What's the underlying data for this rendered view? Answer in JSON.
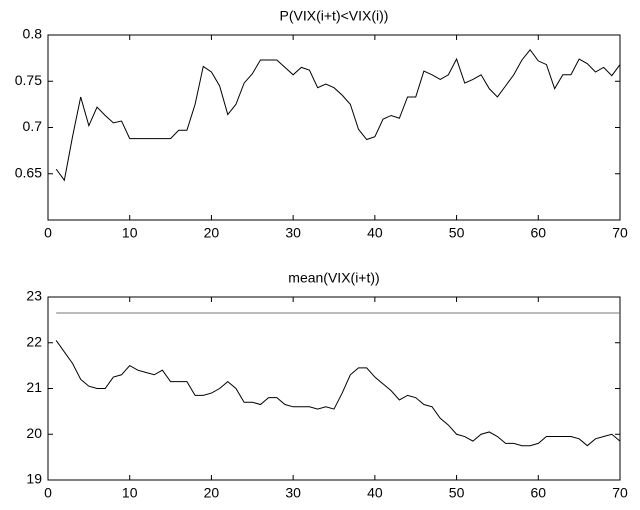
{
  "chart_data": [
    {
      "type": "line",
      "title": "P(VIX(i+t)<VIX(i))",
      "xlim": [
        0,
        70
      ],
      "xticks": [
        0,
        10,
        20,
        30,
        40,
        50,
        60,
        70
      ],
      "ylim": [
        0.6,
        0.8
      ],
      "yticks": [
        0.65,
        0.7,
        0.75,
        0.8
      ],
      "series": [
        {
          "color": "#000000",
          "x": [
            1,
            2,
            3,
            4,
            5,
            6,
            7,
            8,
            9,
            10,
            11,
            12,
            13,
            14,
            15,
            16,
            17,
            18,
            19,
            20,
            21,
            22,
            23,
            24,
            25,
            26,
            27,
            28,
            29,
            30,
            31,
            32,
            33,
            34,
            35,
            36,
            37,
            38,
            39,
            40,
            41,
            42,
            43,
            44,
            45,
            46,
            47,
            48,
            49,
            50,
            51,
            52,
            53,
            54,
            55,
            56,
            57,
            58,
            59,
            60,
            61,
            62,
            63,
            64,
            65,
            66,
            67,
            68,
            69,
            70
          ],
          "values": [
            0.655,
            0.643,
            0.69,
            0.733,
            0.702,
            0.722,
            0.713,
            0.705,
            0.707,
            0.688,
            0.688,
            0.688,
            0.688,
            0.688,
            0.688,
            0.697,
            0.697,
            0.725,
            0.766,
            0.76,
            0.745,
            0.714,
            0.725,
            0.748,
            0.758,
            0.773,
            0.773,
            0.773,
            0.765,
            0.757,
            0.765,
            0.762,
            0.743,
            0.747,
            0.743,
            0.735,
            0.725,
            0.698,
            0.687,
            0.69,
            0.709,
            0.713,
            0.71,
            0.733,
            0.733,
            0.761,
            0.757,
            0.752,
            0.757,
            0.774,
            0.748,
            0.752,
            0.757,
            0.742,
            0.733,
            0.745,
            0.757,
            0.773,
            0.784,
            0.772,
            0.768,
            0.742,
            0.757,
            0.757,
            0.774,
            0.769,
            0.76,
            0.765,
            0.756,
            0.768
          ]
        }
      ]
    },
    {
      "type": "line",
      "title": "mean(VIX(i+t))",
      "xlim": [
        0,
        70
      ],
      "xticks": [
        0,
        10,
        20,
        30,
        40,
        50,
        60,
        70
      ],
      "ylim": [
        19,
        23
      ],
      "yticks": [
        19,
        20,
        21,
        22,
        23
      ],
      "series": [
        {
          "color": "#000000",
          "x": [
            1,
            2,
            3,
            4,
            5,
            6,
            7,
            8,
            9,
            10,
            11,
            12,
            13,
            14,
            15,
            16,
            17,
            18,
            19,
            20,
            21,
            22,
            23,
            24,
            25,
            26,
            27,
            28,
            29,
            30,
            31,
            32,
            33,
            34,
            35,
            36,
            37,
            38,
            39,
            40,
            41,
            42,
            43,
            44,
            45,
            46,
            47,
            48,
            49,
            50,
            51,
            52,
            53,
            54,
            55,
            56,
            57,
            58,
            59,
            60,
            61,
            62,
            63,
            64,
            65,
            66,
            67,
            68,
            69,
            70
          ],
          "values": [
            22.05,
            21.8,
            21.55,
            21.2,
            21.05,
            21.0,
            21.0,
            21.25,
            21.3,
            21.5,
            21.4,
            21.35,
            21.3,
            21.4,
            21.15,
            21.15,
            21.15,
            20.85,
            20.85,
            20.9,
            21.0,
            21.15,
            21.0,
            20.7,
            20.7,
            20.65,
            20.8,
            20.8,
            20.65,
            20.6,
            20.6,
            20.6,
            20.55,
            20.6,
            20.55,
            20.9,
            21.3,
            21.45,
            21.45,
            21.25,
            21.1,
            20.95,
            20.75,
            20.85,
            20.8,
            20.65,
            20.6,
            20.35,
            20.2,
            20.0,
            19.95,
            19.85,
            20.0,
            20.05,
            19.95,
            19.8,
            19.8,
            19.75,
            19.75,
            19.8,
            19.95,
            19.95,
            19.95,
            19.95,
            19.9,
            19.75,
            19.9,
            19.95,
            20.0,
            19.85
          ]
        },
        {
          "color": "#777777",
          "x": [
            1,
            70
          ],
          "values": [
            22.65,
            22.65
          ]
        }
      ]
    }
  ]
}
